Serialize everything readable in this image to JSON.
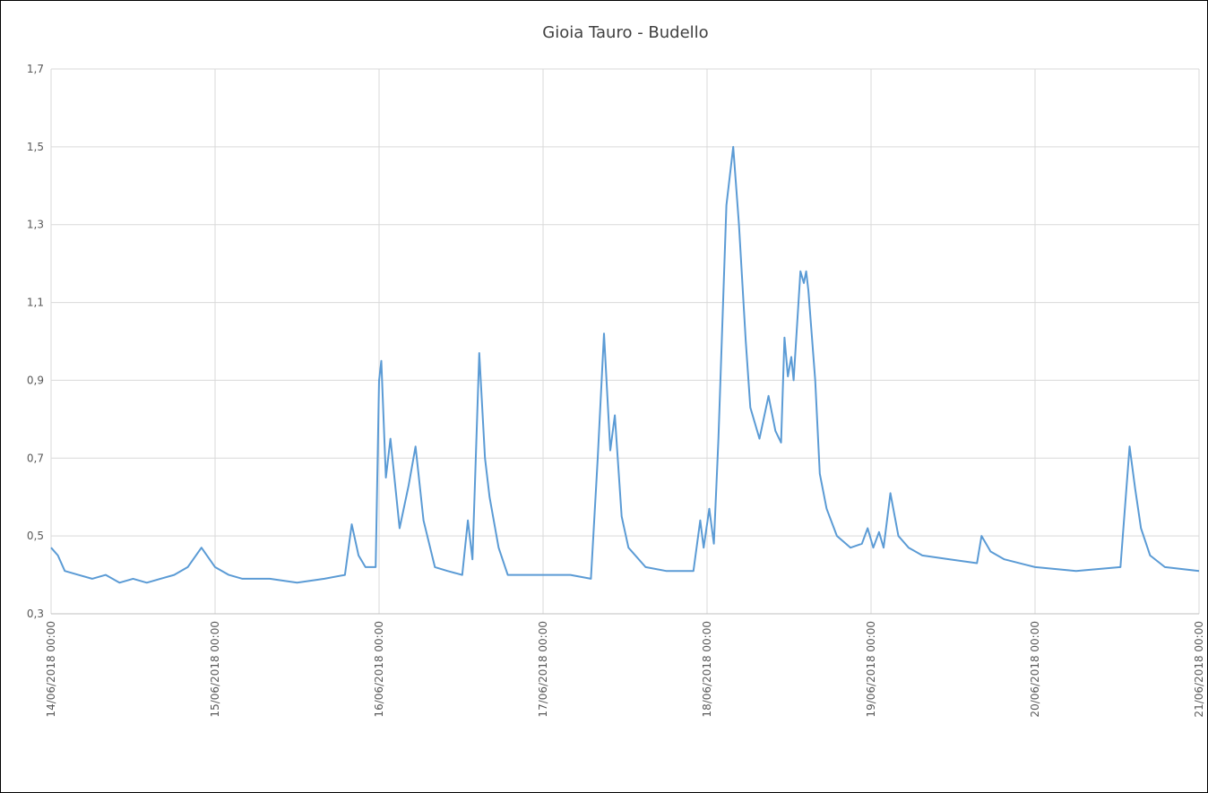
{
  "chart_data": {
    "type": "line",
    "title": "Gioia Tauro - Budello",
    "x": [
      "2018-06-14T00:00",
      "2018-06-14T01:00",
      "2018-06-14T02:00",
      "2018-06-14T04:00",
      "2018-06-14T06:00",
      "2018-06-14T08:00",
      "2018-06-14T10:00",
      "2018-06-14T12:00",
      "2018-06-14T14:00",
      "2018-06-14T16:00",
      "2018-06-14T18:00",
      "2018-06-14T20:00",
      "2018-06-14T22:00",
      "2018-06-15T00:00",
      "2018-06-15T02:00",
      "2018-06-15T04:00",
      "2018-06-15T08:00",
      "2018-06-15T12:00",
      "2018-06-15T16:00",
      "2018-06-15T19:00",
      "2018-06-15T20:00",
      "2018-06-15T21:00",
      "2018-06-15T22:00",
      "2018-06-15T23:30",
      "2018-06-16T00:00",
      "2018-06-16T00:20",
      "2018-06-16T01:00",
      "2018-06-16T01:40",
      "2018-06-16T03:00",
      "2018-06-16T04:20",
      "2018-06-16T05:20",
      "2018-06-16T06:30",
      "2018-06-16T08:10",
      "2018-06-16T10:00",
      "2018-06-16T12:10",
      "2018-06-16T13:00",
      "2018-06-16T13:40",
      "2018-06-16T14:40",
      "2018-06-16T15:30",
      "2018-06-16T16:10",
      "2018-06-16T17:30",
      "2018-06-16T18:50",
      "2018-06-17T00:00",
      "2018-06-17T04:00",
      "2018-06-17T07:00",
      "2018-06-17T08:00",
      "2018-06-17T08:55",
      "2018-06-17T09:50",
      "2018-06-17T10:30",
      "2018-06-17T11:30",
      "2018-06-17T12:30",
      "2018-06-17T15:00",
      "2018-06-17T18:00",
      "2018-06-17T22:00",
      "2018-06-17T23:00",
      "2018-06-17T23:30",
      "2018-06-18T00:20",
      "2018-06-18T01:00",
      "2018-06-18T01:40",
      "2018-06-18T02:50",
      "2018-06-18T03:50",
      "2018-06-18T04:40",
      "2018-06-18T05:40",
      "2018-06-18T06:20",
      "2018-06-18T07:40",
      "2018-06-18T09:00",
      "2018-06-18T10:00",
      "2018-06-18T10:50",
      "2018-06-18T11:20",
      "2018-06-18T11:50",
      "2018-06-18T12:20",
      "2018-06-18T12:40",
      "2018-06-18T13:40",
      "2018-06-18T14:10",
      "2018-06-18T14:30",
      "2018-06-18T14:50",
      "2018-06-18T15:50",
      "2018-06-18T16:30",
      "2018-06-18T17:30",
      "2018-06-18T19:00",
      "2018-06-18T21:00",
      "2018-06-18T22:40",
      "2018-06-18T23:30",
      "2018-06-19T00:20",
      "2018-06-19T01:10",
      "2018-06-19T01:50",
      "2018-06-19T02:50",
      "2018-06-19T04:00",
      "2018-06-19T05:30",
      "2018-06-19T07:30",
      "2018-06-19T11:30",
      "2018-06-19T15:30",
      "2018-06-19T16:10",
      "2018-06-19T17:30",
      "2018-06-19T19:30",
      "2018-06-20T00:00",
      "2018-06-20T06:00",
      "2018-06-20T12:30",
      "2018-06-20T13:50",
      "2018-06-20T14:40",
      "2018-06-20T15:30",
      "2018-06-20T16:50",
      "2018-06-20T19:00",
      "2018-06-21T00:00"
    ],
    "series": [
      {
        "color": "#5b9bd5",
        "values": [
          0.47,
          0.45,
          0.41,
          0.4,
          0.39,
          0.4,
          0.38,
          0.39,
          0.38,
          0.39,
          0.4,
          0.42,
          0.47,
          0.42,
          0.4,
          0.39,
          0.39,
          0.38,
          0.39,
          0.4,
          0.53,
          0.45,
          0.42,
          0.42,
          0.9,
          0.95,
          0.65,
          0.75,
          0.52,
          0.63,
          0.73,
          0.54,
          0.42,
          0.41,
          0.4,
          0.54,
          0.44,
          0.97,
          0.7,
          0.6,
          0.47,
          0.4,
          0.4,
          0.4,
          0.39,
          0.7,
          1.02,
          0.72,
          0.81,
          0.55,
          0.47,
          0.42,
          0.41,
          0.41,
          0.54,
          0.47,
          0.57,
          0.48,
          0.75,
          1.35,
          1.5,
          1.3,
          1.0,
          0.83,
          0.75,
          0.86,
          0.77,
          0.74,
          1.01,
          0.91,
          0.96,
          0.9,
          1.18,
          1.15,
          1.18,
          1.13,
          0.9,
          0.66,
          0.57,
          0.5,
          0.47,
          0.48,
          0.52,
          0.47,
          0.51,
          0.47,
          0.61,
          0.5,
          0.47,
          0.45,
          0.44,
          0.43,
          0.5,
          0.46,
          0.44,
          0.42,
          0.41,
          0.42,
          0.73,
          0.62,
          0.52,
          0.45,
          0.42,
          0.41
        ]
      }
    ],
    "xlim": [
      "2018-06-14T00:00",
      "2018-06-21T00:00"
    ],
    "xticks": [
      {
        "value": "2018-06-14T00:00",
        "label": "14/06/2018 00:00"
      },
      {
        "value": "2018-06-15T00:00",
        "label": "15/06/2018 00:00"
      },
      {
        "value": "2018-06-16T00:00",
        "label": "16/06/2018 00:00"
      },
      {
        "value": "2018-06-17T00:00",
        "label": "17/06/2018 00:00"
      },
      {
        "value": "2018-06-18T00:00",
        "label": "18/06/2018 00:00"
      },
      {
        "value": "2018-06-19T00:00",
        "label": "19/06/2018 00:00"
      },
      {
        "value": "2018-06-20T00:00",
        "label": "20/06/2018 00:00"
      },
      {
        "value": "2018-06-21T00:00",
        "label": "21/06/2018 00:00"
      }
    ],
    "ylim": [
      0.3,
      1.7
    ],
    "yticks": [
      {
        "value": 0.3,
        "label": "0,3"
      },
      {
        "value": 0.5,
        "label": "0,5"
      },
      {
        "value": 0.7,
        "label": "0,7"
      },
      {
        "value": 0.9,
        "label": "0,9"
      },
      {
        "value": 1.1,
        "label": "1,1"
      },
      {
        "value": 1.3,
        "label": "1,3"
      },
      {
        "value": 1.5,
        "label": "1,5"
      },
      {
        "value": 1.7,
        "label": "1,7"
      }
    ],
    "grid": true
  }
}
